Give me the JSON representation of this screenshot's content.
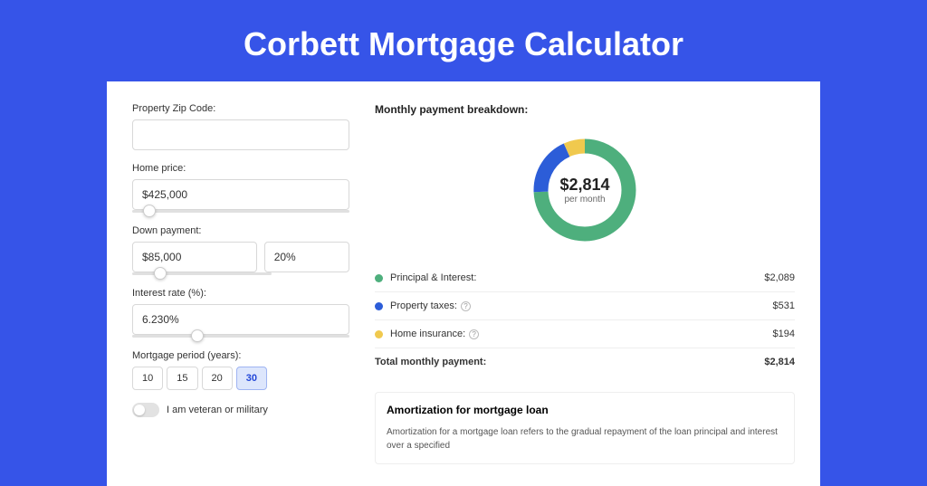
{
  "page": {
    "title": "Corbett Mortgage Calculator",
    "background_color": "#3654e8"
  },
  "form": {
    "zip": {
      "label": "Property Zip Code:",
      "value": ""
    },
    "home_price": {
      "label": "Home price:",
      "value": "$425,000",
      "slider_position_pct": 8
    },
    "down_payment": {
      "label": "Down payment:",
      "amount": "$85,000",
      "percent": "20%",
      "slider_position_pct": 20
    },
    "interest_rate": {
      "label": "Interest rate (%):",
      "value": "6.230%",
      "slider_position_pct": 30
    },
    "period": {
      "label": "Mortgage period (years):",
      "options": [
        "10",
        "15",
        "20",
        "30"
      ],
      "selected": "30"
    },
    "veteran": {
      "label": "I am veteran or military",
      "checked": false
    }
  },
  "breakdown": {
    "title": "Monthly payment breakdown:",
    "donut": {
      "amount": "$2,814",
      "sub": "per month",
      "ring_width": 16,
      "segments": [
        {
          "key": "principal_interest",
          "color": "#4eaf7d",
          "value": 2089
        },
        {
          "key": "property_taxes",
          "color": "#2c5dd8",
          "value": 531
        },
        {
          "key": "home_insurance",
          "color": "#f0c94e",
          "value": 194
        }
      ]
    },
    "rows": [
      {
        "key": "principal_interest",
        "label": "Principal & Interest:",
        "value": "$2,089",
        "color": "#4eaf7d",
        "info": false
      },
      {
        "key": "property_taxes",
        "label": "Property taxes:",
        "value": "$531",
        "color": "#2c5dd8",
        "info": true
      },
      {
        "key": "home_insurance",
        "label": "Home insurance:",
        "value": "$194",
        "color": "#f0c94e",
        "info": true
      }
    ],
    "total": {
      "label": "Total monthly payment:",
      "value": "$2,814"
    }
  },
  "amortization": {
    "title": "Amortization for mortgage loan",
    "text": "Amortization for a mortgage loan refers to the gradual repayment of the loan principal and interest over a specified"
  }
}
